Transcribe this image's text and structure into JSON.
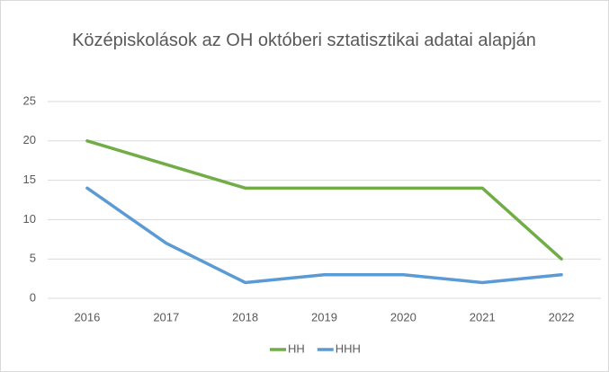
{
  "chart_data": {
    "type": "line",
    "title": "Középiskolások az OH októberi sztatisztikai adatai alapján",
    "categories": [
      "2016",
      "2017",
      "2018",
      "2019",
      "2020",
      "2021",
      "2022"
    ],
    "series": [
      {
        "name": "HH",
        "color": "#70ad47",
        "values": [
          20,
          17,
          14,
          14,
          14,
          14,
          5
        ]
      },
      {
        "name": "HHH",
        "color": "#5b9bd5",
        "values": [
          14,
          7,
          2,
          3,
          3,
          2,
          3
        ]
      }
    ],
    "ylim": [
      0,
      25
    ],
    "yticks": [
      0,
      5,
      10,
      15,
      20,
      25
    ],
    "grid": true,
    "legend": "bottom"
  }
}
